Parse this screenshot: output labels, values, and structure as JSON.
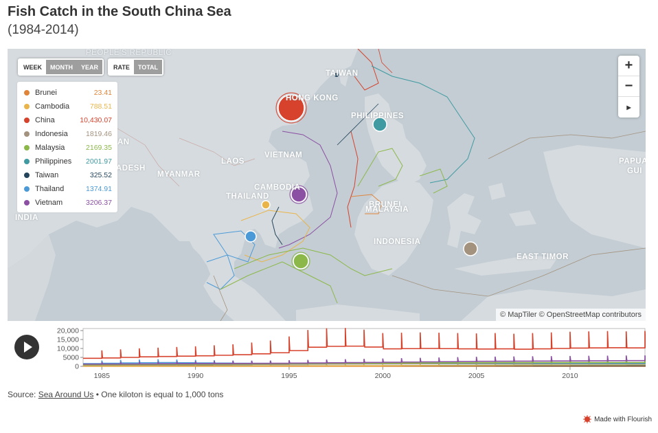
{
  "title": "Fish Catch in the South China Sea",
  "subtitle": "(1984-2014)",
  "controls": {
    "period": [
      "WEEK",
      "MONTH",
      "YEAR"
    ],
    "measure": [
      "RATE",
      "TOTAL"
    ]
  },
  "legend": [
    {
      "name": "Brunei",
      "value": "23.41",
      "color": "#e0843a"
    },
    {
      "name": "Cambodia",
      "value": "788.51",
      "color": "#e9b54a"
    },
    {
      "name": "China",
      "value": "10,430.07",
      "color": "#d6422c"
    },
    {
      "name": "Indonesia",
      "value": "1819.46",
      "color": "#a3927e"
    },
    {
      "name": "Malaysia",
      "value": "2169.35",
      "color": "#8cb84a"
    },
    {
      "name": "Philippines",
      "value": "2001.97",
      "color": "#3f9aa1"
    },
    {
      "name": "Taiwan",
      "value": "325.52",
      "color": "#24445c"
    },
    {
      "name": "Thailand",
      "value": "1374.91",
      "color": "#4b9ad7"
    },
    {
      "name": "Vietnam",
      "value": "3206.37",
      "color": "#8b4fa3"
    }
  ],
  "map_labels": {
    "china": "PEOPLE'S REPUBLIC",
    "hongkong": "HONG KONG",
    "taiwan": "TAIWAN",
    "philippines": "PHILIPPINES",
    "vietnam": "VIETNAM",
    "laos": "LAOS",
    "myanmar": "MYANMAR",
    "bangladesh": "ADESH",
    "thailand": "THAILAND",
    "cambodia": "CAMBODIA",
    "brunei": "BRUNEI",
    "malaysia": "MALAYSIA",
    "indonesia": "INDONESIA",
    "india": "INDIA",
    "easttimor": "EAST TIMOR",
    "papua": "PAPUA",
    "gui": "GUI",
    "an": "AN"
  },
  "zoom": {
    "in": "+",
    "out": "−",
    "select": "▸"
  },
  "attribution": "© MapTiler © OpenStreetMap contributors",
  "chart_data": {
    "type": "line",
    "x": [
      1984,
      1985,
      1986,
      1987,
      1988,
      1989,
      1990,
      1991,
      1992,
      1993,
      1994,
      1995,
      1996,
      1997,
      1998,
      1999,
      2000,
      2001,
      2002,
      2003,
      2004,
      2005,
      2006,
      2007,
      2008,
      2009,
      2010,
      2011,
      2012,
      2013,
      2014
    ],
    "ylim": [
      0,
      20000
    ],
    "yticks": [
      "0",
      "5000",
      "10,000",
      "15,000",
      "20,000"
    ],
    "xticks": [
      "1985",
      "1990",
      "1995",
      "2000",
      "2005",
      "2010"
    ],
    "series": [
      {
        "name": "China",
        "color": "#d6422c",
        "values": [
          4500,
          4700,
          5000,
          5300,
          5500,
          5700,
          5900,
          6200,
          6500,
          7000,
          7600,
          8800,
          10700,
          11200,
          11300,
          10800,
          9800,
          9900,
          10000,
          9900,
          9800,
          9700,
          9800,
          9600,
          9800,
          10000,
          10200,
          10300,
          10400,
          10300,
          10430
        ]
      },
      {
        "name": "Vietnam",
        "color": "#8b4fa3",
        "values": [
          1200,
          1250,
          1300,
          1350,
          1400,
          1450,
          1500,
          1550,
          1600,
          1650,
          1700,
          1800,
          1900,
          2000,
          2100,
          2200,
          2300,
          2400,
          2500,
          2600,
          2700,
          2800,
          2850,
          2900,
          2950,
          3000,
          3050,
          3100,
          3150,
          3200,
          3206
        ]
      },
      {
        "name": "Malaysia",
        "color": "#8cb84a",
        "values": [
          900,
          950,
          1000,
          1050,
          1100,
          1150,
          1200,
          1250,
          1300,
          1350,
          1400,
          1500,
          1600,
          1650,
          1700,
          1750,
          1800,
          1850,
          1900,
          1950,
          2000,
          2050,
          2100,
          2100,
          2120,
          2130,
          2140,
          2150,
          2160,
          2165,
          2169
        ]
      },
      {
        "name": "Philippines",
        "color": "#3f9aa1",
        "values": [
          1000,
          1050,
          1100,
          1150,
          1200,
          1250,
          1300,
          1350,
          1400,
          1450,
          1500,
          1550,
          1600,
          1650,
          1700,
          1750,
          1800,
          1850,
          1900,
          1950,
          1980,
          2000,
          2010,
          2020,
          2000,
          1990,
          2000,
          2000,
          2005,
          2000,
          2002
        ]
      },
      {
        "name": "Indonesia",
        "color": "#a3927e",
        "values": [
          600,
          650,
          700,
          750,
          800,
          850,
          900,
          950,
          1000,
          1050,
          1100,
          1150,
          1200,
          1250,
          1300,
          1350,
          1400,
          1450,
          1500,
          1550,
          1600,
          1650,
          1700,
          1720,
          1740,
          1760,
          1780,
          1790,
          1800,
          1810,
          1819
        ]
      },
      {
        "name": "Thailand",
        "color": "#4b9ad7",
        "values": [
          1500,
          1700,
          1900,
          2000,
          2100,
          2000,
          1900,
          1800,
          1700,
          1650,
          1600,
          1550,
          1500,
          1500,
          1450,
          1450,
          1400,
          1400,
          1400,
          1380,
          1380,
          1370,
          1370,
          1370,
          1375,
          1375,
          1375,
          1375,
          1375,
          1375,
          1375
        ]
      },
      {
        "name": "Cambodia",
        "color": "#e9b54a",
        "values": [
          100,
          110,
          120,
          130,
          140,
          150,
          160,
          170,
          180,
          200,
          220,
          240,
          260,
          280,
          300,
          330,
          360,
          400,
          440,
          480,
          520,
          560,
          600,
          640,
          680,
          700,
          720,
          740,
          760,
          780,
          789
        ]
      },
      {
        "name": "Taiwan",
        "color": "#24445c",
        "values": [
          200,
          210,
          220,
          230,
          240,
          250,
          260,
          270,
          280,
          290,
          300,
          300,
          310,
          310,
          310,
          315,
          315,
          318,
          318,
          320,
          320,
          320,
          322,
          322,
          322,
          324,
          324,
          325,
          325,
          325,
          326
        ]
      },
      {
        "name": "Brunei",
        "color": "#e0843a",
        "values": [
          10,
          10,
          11,
          11,
          12,
          12,
          13,
          13,
          14,
          14,
          15,
          15,
          16,
          16,
          17,
          17,
          18,
          18,
          19,
          19,
          20,
          20,
          21,
          21,
          22,
          22,
          22,
          23,
          23,
          23,
          23
        ]
      }
    ]
  },
  "source": {
    "prefix": "Source: ",
    "link": "Sea Around Us",
    "suffix": " • One kiloton is equal to 1,000 tons"
  },
  "credit": "Made with Flourish"
}
